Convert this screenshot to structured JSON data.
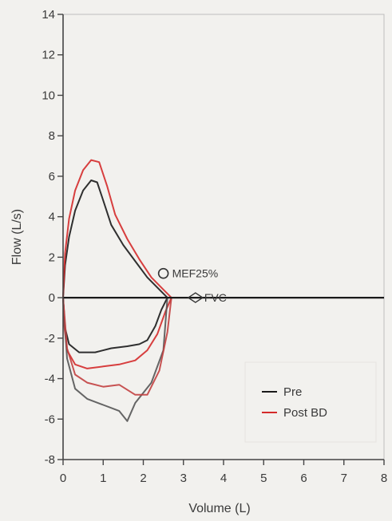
{
  "chart_data": {
    "type": "line",
    "title": "",
    "xlabel": "Volume (L)",
    "ylabel": "Flow (L/s)",
    "xlim": [
      0,
      8
    ],
    "ylim": [
      -8,
      14
    ],
    "xticks": [
      "0",
      "1",
      "2",
      "3",
      "4",
      "5",
      "6",
      "7",
      "8"
    ],
    "yticks": [
      "-8",
      "-6",
      "-4",
      "-2",
      "0",
      "2",
      "4",
      "6",
      "8",
      "10",
      "12",
      "14"
    ],
    "grid": false,
    "legend": {
      "position": "bottom-right",
      "entries": [
        {
          "name": "Pre",
          "color": "#1a1a1a"
        },
        {
          "name": "Post BD",
          "color": "#d42a2a"
        }
      ]
    },
    "annotations": [
      {
        "text": "MEF25%",
        "marker": "circle",
        "x": 2.5,
        "y": 1.2
      },
      {
        "text": "FVC",
        "marker": "diamond",
        "x": 3.3,
        "y": 0
      }
    ],
    "series": [
      {
        "name": "Pre",
        "color": "#1a1a1a",
        "expiratory_x": [
          0.0,
          0.05,
          0.15,
          0.3,
          0.5,
          0.7,
          0.85,
          1.0,
          1.2,
          1.5,
          1.8,
          2.1,
          2.4,
          2.6
        ],
        "expiratory_y": [
          0.0,
          1.6,
          3.0,
          4.3,
          5.3,
          5.8,
          5.7,
          4.8,
          3.6,
          2.6,
          1.8,
          1.0,
          0.4,
          0.0
        ],
        "inspiratory_x": [
          2.6,
          2.45,
          2.3,
          2.1,
          1.9,
          1.6,
          1.2,
          0.8,
          0.4,
          0.15,
          0.05,
          0.0
        ],
        "inspiratory_y": [
          0.0,
          -0.6,
          -1.4,
          -2.1,
          -2.3,
          -2.4,
          -2.5,
          -2.7,
          -2.7,
          -2.3,
          -1.5,
          0.0
        ]
      },
      {
        "name": "Post BD",
        "color": "#d42a2a",
        "expiratory_x": [
          0.0,
          0.05,
          0.15,
          0.3,
          0.5,
          0.7,
          0.9,
          1.1,
          1.3,
          1.6,
          1.9,
          2.2,
          2.5,
          2.7
        ],
        "expiratory_y": [
          0.0,
          2.2,
          3.9,
          5.3,
          6.3,
          6.8,
          6.7,
          5.5,
          4.1,
          2.9,
          1.9,
          1.0,
          0.4,
          0.0
        ],
        "inspiratory_x": [
          2.7,
          2.55,
          2.35,
          2.1,
          1.8,
          1.4,
          1.0,
          0.6,
          0.3,
          0.1,
          0.03,
          0.0
        ],
        "inspiratory_y": [
          0.0,
          -0.7,
          -1.8,
          -2.6,
          -3.1,
          -3.3,
          -3.4,
          -3.5,
          -3.3,
          -2.6,
          -1.4,
          0.0
        ]
      },
      {
        "name": "",
        "color": "#555555",
        "expiratory_x": [],
        "expiratory_y": [],
        "inspiratory_x": [
          2.6,
          2.5,
          2.2,
          1.8,
          1.6,
          1.4,
          1.0,
          0.6,
          0.3,
          0.1,
          0.0
        ],
        "inspiratory_y": [
          0.0,
          -2.6,
          -4.2,
          -5.2,
          -6.1,
          -5.6,
          -5.3,
          -5.0,
          -4.5,
          -3.0,
          0.0
        ]
      },
      {
        "name": "",
        "color": "#c24040",
        "expiratory_x": [],
        "expiratory_y": [],
        "inspiratory_x": [
          2.7,
          2.6,
          2.4,
          2.1,
          1.8,
          1.4,
          1.0,
          0.6,
          0.3,
          0.1,
          0.0
        ],
        "inspiratory_y": [
          0.0,
          -1.7,
          -3.6,
          -4.8,
          -4.8,
          -4.3,
          -4.4,
          -4.2,
          -3.8,
          -2.5,
          0.0
        ]
      }
    ]
  }
}
